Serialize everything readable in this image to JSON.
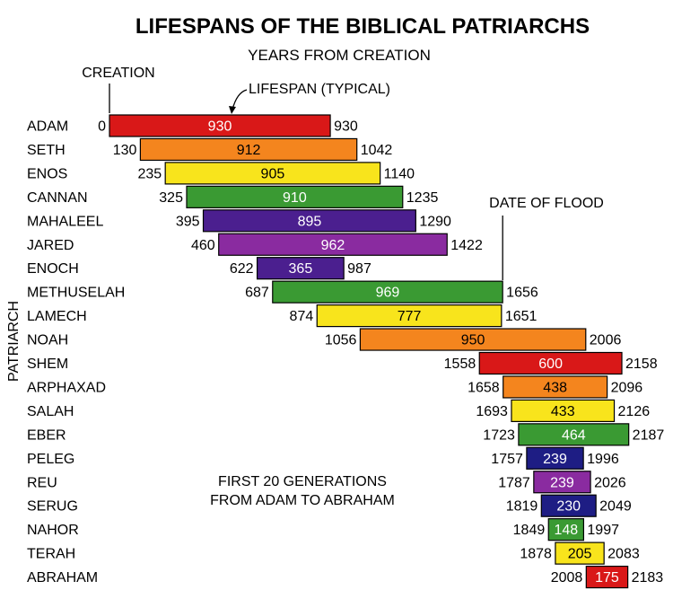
{
  "chart_data": {
    "type": "bar",
    "subtype": "horizontal-floating-range",
    "title": "LIFESPANS OF THE BIBLICAL PATRIARCHS",
    "subtitle": "YEARS FROM CREATION",
    "xlabel": "YEARS FROM CREATION",
    "ylabel": "PATRIARCH",
    "annotations": {
      "creation": "CREATION",
      "lifespan": "LIFESPAN (TYPICAL)",
      "flood": "DATE OF FLOOD",
      "flood_year": 1656,
      "note_line1": "FIRST 20 GENERATIONS",
      "note_line2": "FROM ADAM TO ABRAHAM"
    },
    "patriarchs": [
      {
        "name": "ADAM",
        "birth": 0,
        "death": 930,
        "lifespan": 930,
        "color": "#d91818",
        "text": "#ffffff"
      },
      {
        "name": "SETH",
        "birth": 130,
        "death": 1042,
        "lifespan": 912,
        "color": "#f4851e",
        "text": "#000000"
      },
      {
        "name": "ENOS",
        "birth": 235,
        "death": 1140,
        "lifespan": 905,
        "color": "#f8e41c",
        "text": "#000000"
      },
      {
        "name": "CANNAN",
        "birth": 325,
        "death": 1235,
        "lifespan": 910,
        "color": "#3a9a33",
        "text": "#ffffff"
      },
      {
        "name": "MAHALEEL",
        "birth": 395,
        "death": 1290,
        "lifespan": 895,
        "color": "#4b1f8f",
        "text": "#ffffff"
      },
      {
        "name": "JARED",
        "birth": 460,
        "death": 1422,
        "lifespan": 962,
        "color": "#8a2ba0",
        "text": "#ffffff"
      },
      {
        "name": "ENOCH",
        "birth": 622,
        "death": 987,
        "lifespan": 365,
        "color": "#4b1f8f",
        "text": "#ffffff"
      },
      {
        "name": "METHUSELAH",
        "birth": 687,
        "death": 1656,
        "lifespan": 969,
        "color": "#3a9a33",
        "text": "#ffffff"
      },
      {
        "name": "LAMECH",
        "birth": 874,
        "death": 1651,
        "lifespan": 777,
        "color": "#f8e41c",
        "text": "#000000"
      },
      {
        "name": "NOAH",
        "birth": 1056,
        "death": 2006,
        "lifespan": 950,
        "color": "#f4851e",
        "text": "#000000"
      },
      {
        "name": "SHEM",
        "birth": 1558,
        "death": 2158,
        "lifespan": 600,
        "color": "#d91818",
        "text": "#ffffff"
      },
      {
        "name": "ARPHAXAD",
        "birth": 1658,
        "death": 2096,
        "lifespan": 438,
        "color": "#f4851e",
        "text": "#000000"
      },
      {
        "name": "SALAH",
        "birth": 1693,
        "death": 2126,
        "lifespan": 433,
        "color": "#f8e41c",
        "text": "#000000"
      },
      {
        "name": "EBER",
        "birth": 1723,
        "death": 2187,
        "lifespan": 464,
        "color": "#3a9a33",
        "text": "#ffffff"
      },
      {
        "name": "PELEG",
        "birth": 1757,
        "death": 1996,
        "lifespan": 239,
        "color": "#1e1d84",
        "text": "#ffffff"
      },
      {
        "name": "REU",
        "birth": 1787,
        "death": 2026,
        "lifespan": 239,
        "color": "#8a2ba0",
        "text": "#ffffff"
      },
      {
        "name": "SERUG",
        "birth": 1819,
        "death": 2049,
        "lifespan": 230,
        "color": "#1e1d84",
        "text": "#ffffff"
      },
      {
        "name": "NAHOR",
        "birth": 1849,
        "death": 1997,
        "lifespan": 148,
        "color": "#3a9a33",
        "text": "#ffffff"
      },
      {
        "name": "TERAH",
        "birth": 1878,
        "death": 2083,
        "lifespan": 205,
        "color": "#f8e41c",
        "text": "#000000"
      },
      {
        "name": "ABRAHAM",
        "birth": 2008,
        "death": 2183,
        "lifespan": 175,
        "color": "#d91818",
        "text": "#ffffff"
      }
    ]
  }
}
